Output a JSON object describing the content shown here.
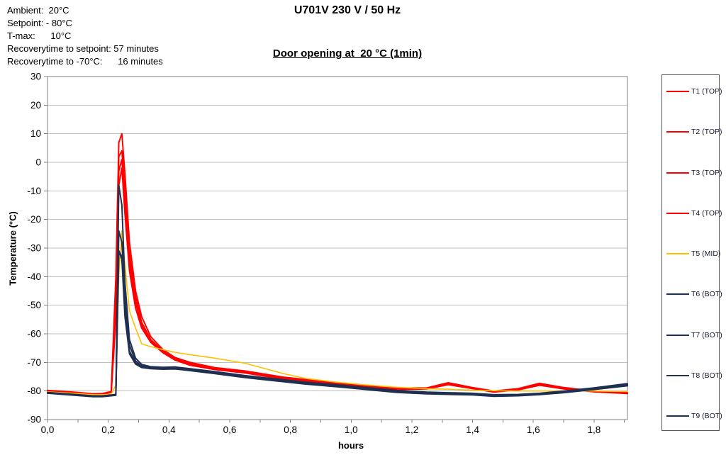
{
  "header": {
    "title": "U701V 230 V / 50 Hz",
    "subtitle": "Door opening at  20 °C (1min)"
  },
  "info": {
    "lines": [
      "Ambient:  20°C",
      "Setpoint: - 80°C",
      "T-max:      10°C",
      "Recoverytime to setpoint: 57 minutes",
      "Recoverytime to -70°C:      16 minutes"
    ]
  },
  "chart_data": {
    "type": "line",
    "title": "U701V 230 V / 50 Hz",
    "subtitle": "Door opening at  20 °C (1min)",
    "xlabel": "hours",
    "ylabel": "Temperature (°C)",
    "xlim": [
      0,
      1.91
    ],
    "ylim": [
      -90,
      30
    ],
    "grid": "horizontal",
    "legend_position": "right",
    "x_ticks": [
      0,
      0.2,
      0.4,
      0.6,
      0.8,
      1.0,
      1.2,
      1.4,
      1.6,
      1.8
    ],
    "x_tick_labels": [
      "0,0",
      "0,2",
      "0,4",
      "0,6",
      "0,8",
      "1,0",
      "1,2",
      "1,4",
      "1,6",
      "1,8"
    ],
    "x_minor_step": 0.1,
    "y_ticks": [
      30,
      20,
      10,
      0,
      -10,
      -20,
      -30,
      -40,
      -50,
      -60,
      -70,
      -80,
      -90
    ],
    "y_tick_labels": [
      "30",
      "20",
      "10",
      "0",
      "-10",
      "-20",
      "-30",
      "-40",
      "-50",
      "-60",
      "-70",
      "-80",
      "-90"
    ],
    "colors": {
      "top": "#FF0000",
      "mid": "#FFC000",
      "bot": "#1F3050",
      "grid": "#BFBFBF",
      "axis": "#808080",
      "text": "#000000"
    },
    "x": [
      0,
      0.05,
      0.1,
      0.15,
      0.18,
      0.21,
      0.225,
      0.235,
      0.245,
      0.255,
      0.27,
      0.29,
      0.31,
      0.34,
      0.38,
      0.42,
      0.47,
      0.55,
      0.65,
      0.78,
      0.85,
      0.95,
      1.05,
      1.15,
      1.25,
      1.32,
      1.4,
      1.47,
      1.55,
      1.62,
      1.7,
      1.8,
      1.91
    ],
    "series": [
      {
        "name": "T1 (TOP)",
        "color": "#FF0000",
        "width": 2,
        "values": [
          -79.8,
          -80.1,
          -80.5,
          -81.0,
          -80.9,
          -80.2,
          -40,
          7,
          10,
          -4,
          -28,
          -45,
          -54,
          -61,
          -65.5,
          -68.3,
          -70.0,
          -71.8,
          -73.0,
          -75.2,
          -76.0,
          -77.2,
          -78.0,
          -79.0,
          -78.9,
          -77.1,
          -78.8,
          -80.0,
          -79.2,
          -77.3,
          -78.8,
          -80.0,
          -80.6
        ]
      },
      {
        "name": "T2 (TOP)",
        "color": "#FF0000",
        "width": 2,
        "values": [
          -79.9,
          -80.2,
          -80.6,
          -81.1,
          -81.0,
          -80.3,
          -45,
          2,
          4,
          -10,
          -32,
          -47,
          -56,
          -62,
          -66.0,
          -68.8,
          -70.4,
          -72.1,
          -73.3,
          -75.5,
          -76.3,
          -77.5,
          -78.3,
          -79.3,
          -79.1,
          -77.4,
          -79.0,
          -80.2,
          -79.4,
          -77.6,
          -79.0,
          -80.1,
          -80.7
        ]
      },
      {
        "name": "T3 (TOP)",
        "color": "#FF0000",
        "width": 2,
        "values": [
          -80.0,
          -80.3,
          -80.7,
          -81.2,
          -81.1,
          -80.4,
          -50,
          -3,
          1,
          -14,
          -35,
          -49,
          -57,
          -62.5,
          -66.3,
          -69.0,
          -70.8,
          -72.3,
          -73.5,
          -75.7,
          -76.5,
          -77.7,
          -78.5,
          -79.4,
          -79.2,
          -77.6,
          -79.1,
          -80.3,
          -79.5,
          -77.8,
          -79.2,
          -80.2,
          -80.8
        ]
      },
      {
        "name": "T4 (TOP)",
        "color": "#FF0000",
        "width": 2,
        "values": [
          -80.1,
          -80.4,
          -80.8,
          -81.3,
          -81.2,
          -80.5,
          -55,
          -8,
          -2,
          -18,
          -38,
          -51,
          -58,
          -63,
          -66.6,
          -69.2,
          -71.0,
          -72.5,
          -73.7,
          -75.9,
          -76.7,
          -77.9,
          -78.6,
          -79.5,
          -79.3,
          -77.8,
          -79.2,
          -80.4,
          -79.6,
          -78.0,
          -79.3,
          -80.3,
          -80.9
        ]
      },
      {
        "name": "T5 (MID)",
        "color": "#FFC000",
        "width": 1.6,
        "values": [
          -80.3,
          -80.6,
          -80.9,
          -81.3,
          -81.3,
          -81.1,
          -78,
          -40,
          -24,
          -36,
          -52,
          -58,
          -63.5,
          -64.5,
          -65.5,
          -66.5,
          -67.3,
          -68.5,
          -70.3,
          -74.0,
          -75.6,
          -76.9,
          -77.9,
          -78.7,
          -79.2,
          -79.4,
          -79.7,
          -79.9,
          -80.0,
          -80.0,
          -80.0,
          -80.0,
          -80.2
        ]
      },
      {
        "name": "T6 (BOT)",
        "color": "#1F3050",
        "width": 2,
        "values": [
          -80.5,
          -80.9,
          -81.3,
          -81.7,
          -81.7,
          -81.4,
          -81.2,
          -8,
          -15,
          -42,
          -62,
          -68.5,
          -70.7,
          -71.5,
          -71.7,
          -71.6,
          -72.2,
          -73.2,
          -74.6,
          -76.1,
          -76.9,
          -77.8,
          -78.8,
          -79.8,
          -80.4,
          -80.6,
          -80.8,
          -81.3,
          -81.2,
          -80.8,
          -80.0,
          -78.9,
          -77.4
        ]
      },
      {
        "name": "T7 (BOT)",
        "color": "#1F3050",
        "width": 2,
        "values": [
          -80.6,
          -81.0,
          -81.4,
          -81.8,
          -81.8,
          -81.5,
          -81.3,
          -24,
          -28,
          -48,
          -64,
          -69.5,
          -71.2,
          -71.8,
          -72.0,
          -71.9,
          -72.5,
          -73.5,
          -74.9,
          -76.4,
          -77.2,
          -78.1,
          -79.1,
          -80.1,
          -80.6,
          -80.8,
          -81.0,
          -81.5,
          -81.4,
          -81.0,
          -80.2,
          -79.1,
          -77.7
        ]
      },
      {
        "name": "T8 (BOT)",
        "color": "#1F3050",
        "width": 2,
        "values": [
          -80.7,
          -81.1,
          -81.5,
          -81.9,
          -81.9,
          -81.6,
          -81.4,
          -31,
          -33,
          -52,
          -66,
          -70.2,
          -71.5,
          -72.0,
          -72.2,
          -72.1,
          -72.7,
          -73.7,
          -75.1,
          -76.6,
          -77.4,
          -78.3,
          -79.3,
          -80.3,
          -80.8,
          -81.0,
          -81.2,
          -81.7,
          -81.5,
          -81.1,
          -80.4,
          -79.3,
          -78.0
        ]
      },
      {
        "name": "T9 (BOT)",
        "color": "#1F3050",
        "width": 2,
        "values": [
          -80.8,
          -81.2,
          -81.6,
          -82.0,
          -82.0,
          -81.7,
          -81.5,
          -31,
          -34,
          -54,
          -67,
          -70.6,
          -71.8,
          -72.2,
          -72.4,
          -72.3,
          -72.9,
          -73.9,
          -75.3,
          -76.8,
          -77.6,
          -78.5,
          -79.5,
          -80.5,
          -81.0,
          -81.2,
          -81.4,
          -81.9,
          -81.7,
          -81.3,
          -80.6,
          -79.5,
          -78.2
        ]
      }
    ]
  },
  "legend": {
    "items": [
      {
        "label": "T1 (TOP)",
        "color": "#FF0000"
      },
      {
        "label": "T2 (TOP)",
        "color": "#FF0000"
      },
      {
        "label": "T3 (TOP)",
        "color": "#FF0000"
      },
      {
        "label": "T4 (TOP)",
        "color": "#FF0000"
      },
      {
        "label": "T5 (MID)",
        "color": "#FFC000"
      },
      {
        "label": "T6 (BOT)",
        "color": "#1F3050"
      },
      {
        "label": "T7 (BOT)",
        "color": "#1F3050"
      },
      {
        "label": "T8 (BOT)",
        "color": "#1F3050"
      },
      {
        "label": "T9 (BOT)",
        "color": "#1F3050"
      }
    ]
  }
}
